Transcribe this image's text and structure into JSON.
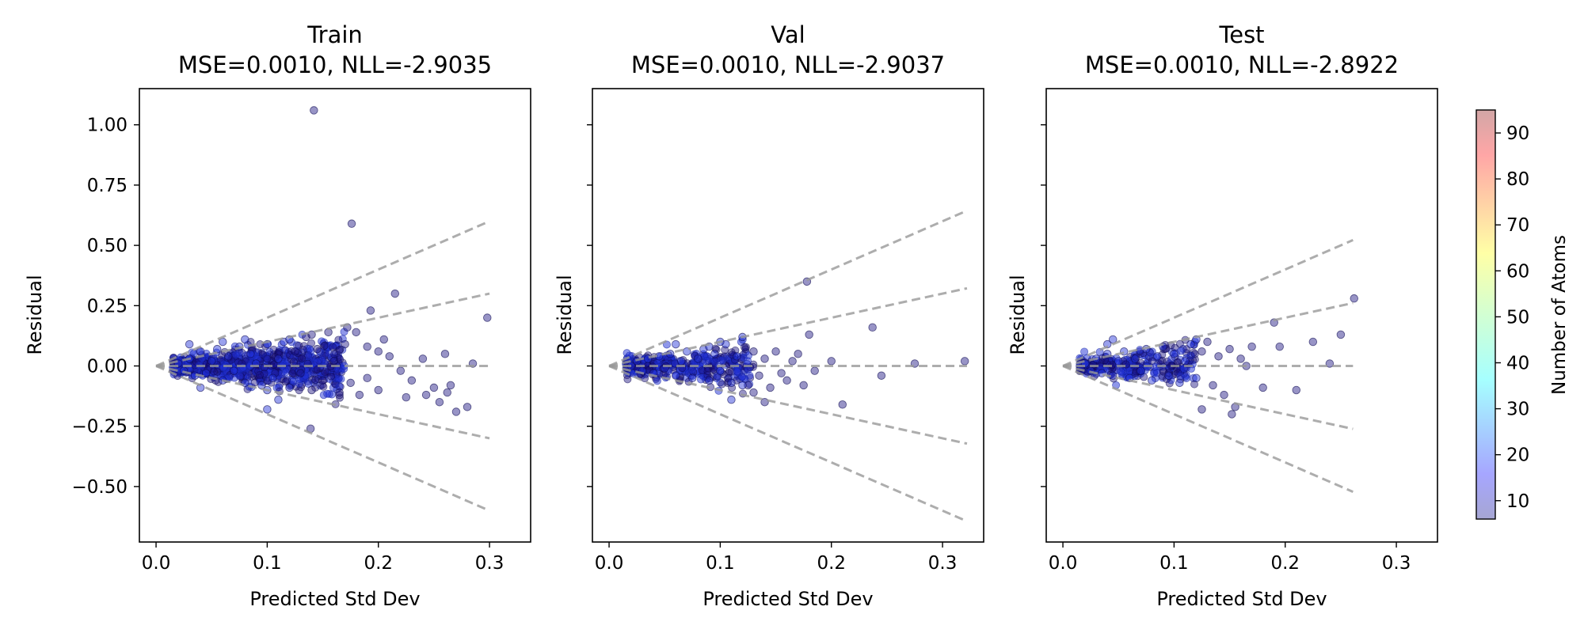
{
  "chart_data": [
    {
      "type": "scatter",
      "title": "Train",
      "subtitle": "MSE=0.0010, NLL=-2.9035",
      "xlabel": "Predicted Std Dev",
      "ylabel": "Residual",
      "xlim": [
        -0.015,
        0.337
      ],
      "ylim": [
        -0.73,
        1.15
      ],
      "xticks": [
        "0.0",
        "0.1",
        "0.2",
        "0.3"
      ],
      "yticks": [
        "−0.50",
        "−0.25",
        "0.00",
        "0.25",
        "0.50",
        "0.75",
        "1.00"
      ],
      "reference_lines": {
        "multipliers": [
          -2,
          -1,
          0,
          1,
          2
        ],
        "x_max": 0.3,
        "style": "dashed",
        "color": "#999999"
      },
      "series": [
        {
          "points": [
            [
              0.02,
              0.01
            ],
            [
              0.025,
              -0.02
            ],
            [
              0.03,
              0.03
            ],
            [
              0.035,
              -0.04
            ],
            [
              0.04,
              0.06
            ],
            [
              0.045,
              -0.03
            ],
            [
              0.05,
              0.02
            ],
            [
              0.055,
              0.07
            ],
            [
              0.06,
              -0.06
            ],
            [
              0.065,
              0.04
            ],
            [
              0.07,
              -0.02
            ],
            [
              0.075,
              0.08
            ],
            [
              0.08,
              -0.07
            ],
            [
              0.085,
              0.05
            ],
            [
              0.09,
              0.01
            ],
            [
              0.095,
              -0.08
            ],
            [
              0.1,
              0.09
            ],
            [
              0.105,
              -0.05
            ],
            [
              0.11,
              0.03
            ],
            [
              0.115,
              0.1
            ],
            [
              0.12,
              -0.09
            ],
            [
              0.125,
              0.06
            ],
            [
              0.13,
              -0.03
            ],
            [
              0.135,
              0.12
            ],
            [
              0.14,
              -0.1
            ],
            [
              0.145,
              0.07
            ],
            [
              0.15,
              -0.06
            ],
            [
              0.155,
              0.14
            ],
            [
              0.16,
              0.02
            ],
            [
              0.165,
              -0.12
            ],
            [
              0.03,
              0.09
            ],
            [
              0.04,
              -0.09
            ],
            [
              0.06,
              0.1
            ],
            [
              0.08,
              0.11
            ],
            [
              0.1,
              -0.1
            ],
            [
              0.12,
              0.11
            ],
            [
              0.14,
              0.13
            ],
            [
              0.1,
              -0.18
            ],
            [
              0.11,
              -0.14
            ],
            [
              0.139,
              -0.26
            ],
            [
              0.142,
              1.06
            ],
            [
              0.176,
              0.59
            ],
            [
              0.172,
              0.16
            ],
            [
              0.19,
              0.08
            ],
            [
              0.193,
              0.23
            ],
            [
              0.205,
              0.11
            ],
            [
              0.21,
              0.04
            ],
            [
              0.215,
              0.3
            ],
            [
              0.19,
              -0.05
            ],
            [
              0.2,
              -0.1
            ],
            [
              0.22,
              -0.02
            ],
            [
              0.23,
              -0.06
            ],
            [
              0.24,
              0.03
            ],
            [
              0.25,
              -0.09
            ],
            [
              0.255,
              -0.15
            ],
            [
              0.26,
              0.05
            ],
            [
              0.265,
              -0.08
            ],
            [
              0.27,
              -0.19
            ],
            [
              0.28,
              -0.17
            ],
            [
              0.285,
              0.01
            ],
            [
              0.298,
              0.2
            ],
            [
              0.183,
              -0.12
            ],
            [
              0.165,
              -0.11
            ],
            [
              0.17,
              0.09
            ],
            [
              0.175,
              -0.07
            ],
            [
              0.18,
              0.14
            ],
            [
              0.2,
              0.06
            ],
            [
              0.225,
              -0.13
            ],
            [
              0.243,
              -0.12
            ],
            [
              0.262,
              -0.11
            ]
          ]
        }
      ]
    },
    {
      "type": "scatter",
      "title": "Val",
      "subtitle": "MSE=0.0010, NLL=-2.9037",
      "xlabel": "Predicted Std Dev",
      "ylabel": "Residual",
      "xlim": [
        -0.015,
        0.337
      ],
      "ylim": [
        -0.73,
        1.15
      ],
      "xticks": [
        "0.0",
        "0.1",
        "0.2",
        "0.3"
      ],
      "yticks": [],
      "reference_lines": {
        "multipliers": [
          -2,
          -1,
          0,
          1,
          2
        ],
        "x_max": 0.322,
        "style": "dashed",
        "color": "#999999"
      },
      "series": [
        {
          "points": [
            [
              0.02,
              0.0
            ],
            [
              0.025,
              0.02
            ],
            [
              0.03,
              -0.02
            ],
            [
              0.035,
              0.03
            ],
            [
              0.04,
              -0.03
            ],
            [
              0.045,
              0.04
            ],
            [
              0.05,
              -0.01
            ],
            [
              0.055,
              0.05
            ],
            [
              0.06,
              -0.04
            ],
            [
              0.065,
              0.02
            ],
            [
              0.07,
              0.06
            ],
            [
              0.075,
              -0.05
            ],
            [
              0.08,
              0.03
            ],
            [
              0.085,
              0.07
            ],
            [
              0.09,
              -0.06
            ],
            [
              0.095,
              0.05
            ],
            [
              0.1,
              -0.02
            ],
            [
              0.105,
              0.09
            ],
            [
              0.11,
              -0.07
            ],
            [
              0.115,
              0.04
            ],
            [
              0.12,
              0.12
            ],
            [
              0.125,
              -0.08
            ],
            [
              0.13,
              0.06
            ],
            [
              0.135,
              -0.04
            ],
            [
              0.14,
              0.03
            ],
            [
              0.145,
              -0.09
            ],
            [
              0.15,
              0.06
            ],
            [
              0.16,
              -0.06
            ],
            [
              0.165,
              0.02
            ],
            [
              0.17,
              0.05
            ],
            [
              0.178,
              0.35
            ],
            [
              0.18,
              0.13
            ],
            [
              0.175,
              -0.08
            ],
            [
              0.185,
              -0.02
            ],
            [
              0.14,
              -0.15
            ],
            [
              0.12,
              -0.08
            ],
            [
              0.11,
              -0.14
            ],
            [
              0.13,
              -0.11
            ],
            [
              0.2,
              0.02
            ],
            [
              0.21,
              -0.16
            ],
            [
              0.237,
              0.16
            ],
            [
              0.245,
              -0.04
            ],
            [
              0.275,
              0.01
            ],
            [
              0.32,
              0.02
            ],
            [
              0.155,
              -0.03
            ],
            [
              0.09,
              0.08
            ],
            [
              0.1,
              0.1
            ],
            [
              0.06,
              0.09
            ]
          ]
        }
      ]
    },
    {
      "type": "scatter",
      "title": "Test",
      "subtitle": "MSE=0.0010, NLL=-2.8922",
      "xlabel": "Predicted Std Dev",
      "ylabel": "Residual",
      "xlim": [
        -0.015,
        0.337
      ],
      "ylim": [
        -0.73,
        1.15
      ],
      "xticks": [
        "0.0",
        "0.1",
        "0.2",
        "0.3"
      ],
      "yticks": [],
      "reference_lines": {
        "multipliers": [
          -2,
          -1,
          0,
          1,
          2
        ],
        "x_max": 0.261,
        "style": "dashed",
        "color": "#999999"
      },
      "series": [
        {
          "points": [
            [
              0.02,
              0.01
            ],
            [
              0.025,
              -0.02
            ],
            [
              0.03,
              0.03
            ],
            [
              0.035,
              -0.03
            ],
            [
              0.04,
              0.05
            ],
            [
              0.045,
              -0.04
            ],
            [
              0.05,
              0.02
            ],
            [
              0.055,
              0.06
            ],
            [
              0.06,
              -0.05
            ],
            [
              0.065,
              0.03
            ],
            [
              0.07,
              -0.02
            ],
            [
              0.075,
              0.07
            ],
            [
              0.08,
              -0.06
            ],
            [
              0.085,
              0.04
            ],
            [
              0.09,
              0.08
            ],
            [
              0.095,
              -0.04
            ],
            [
              0.1,
              0.05
            ],
            [
              0.105,
              -0.07
            ],
            [
              0.11,
              0.02
            ],
            [
              0.115,
              0.09
            ],
            [
              0.12,
              -0.05
            ],
            [
              0.125,
              0.06
            ],
            [
              0.13,
              0.1
            ],
            [
              0.135,
              -0.08
            ],
            [
              0.14,
              0.04
            ],
            [
              0.145,
              -0.12
            ],
            [
              0.15,
              0.07
            ],
            [
              0.155,
              -0.17
            ],
            [
              0.16,
              0.03
            ],
            [
              0.165,
              0.0
            ],
            [
              0.17,
              0.08
            ],
            [
              0.125,
              -0.18
            ],
            [
              0.152,
              -0.2
            ],
            [
              0.19,
              0.18
            ],
            [
              0.195,
              0.08
            ],
            [
              0.21,
              -0.1
            ],
            [
              0.225,
              0.1
            ],
            [
              0.24,
              0.01
            ],
            [
              0.25,
              0.13
            ],
            [
              0.262,
              0.28
            ],
            [
              0.18,
              -0.09
            ],
            [
              0.12,
              0.11
            ],
            [
              0.045,
              0.11
            ],
            [
              0.04,
              0.09
            ]
          ]
        }
      ]
    }
  ],
  "colorbar": {
    "label": "Number of Atoms",
    "range": [
      6,
      95
    ],
    "ticks": [
      "10",
      "20",
      "30",
      "40",
      "50",
      "60",
      "70",
      "80",
      "90"
    ],
    "colormap": "jet",
    "alpha": 0.35
  },
  "colors": {
    "dense_marker": "#1f2fd6",
    "outlier_marker": "#1a1280",
    "reference_line": "#999999"
  }
}
